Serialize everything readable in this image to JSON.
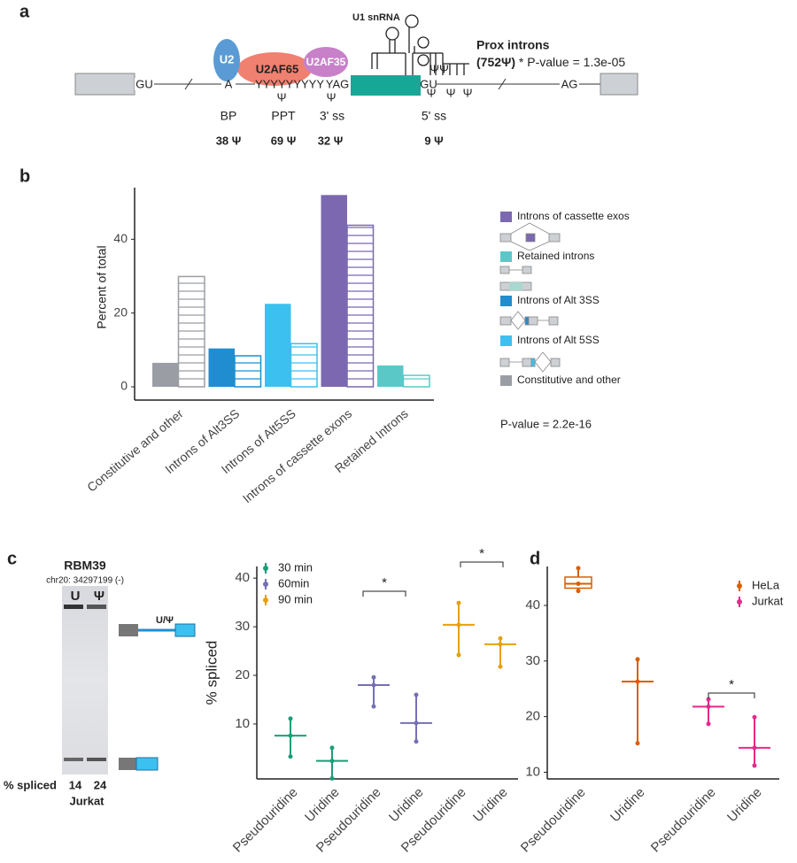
{
  "panel_labels": [
    "a",
    "b",
    "c",
    "d"
  ],
  "diagram": {
    "labels": {
      "u2": "U2",
      "u2af65": "U2AF65",
      "u2af35": "U2AF35",
      "u1": "U1 snRNA",
      "prox_title": "Prox introns",
      "prox_count": "(752Ψ)",
      "prox_p": " * P-value = 1.3e-05"
    },
    "sequence": {
      "gu_left": "GU",
      "branch": "A",
      "ppt": "YYYYYYYYY",
      "yag": "YAG",
      "gu_right": "GU",
      "ag": "AG"
    },
    "psi_marks": [
      "Ψ",
      "Ψ",
      "ΨΨ",
      "Ψ",
      "Ψ",
      "Ψ"
    ],
    "sites": [
      {
        "label": "BP",
        "count": "38 Ψ"
      },
      {
        "label": "PPT",
        "count": "69 Ψ"
      },
      {
        "label": "3' ss",
        "count": "32 Ψ"
      },
      {
        "label": "5' ss",
        "count": "9 Ψ"
      }
    ]
  },
  "gel": {
    "gene": "RBM39",
    "locus": "chr20: 34297199 (-)",
    "lanes": [
      "U",
      "Ψ"
    ],
    "isoform_label": "U/Ψ",
    "row_label": "% spliced",
    "spliced": [
      "14",
      "24"
    ],
    "cell_line": "Jurkat"
  },
  "chart_data": [
    {
      "type": "bar",
      "ylabel": "Percent of total",
      "categories": [
        "Constitutive and other",
        "Introns of Alt3SS",
        "Introns of Alt5SS",
        "Introns of cassette exons",
        "Retained Introns"
      ],
      "colors": [
        "#9a9ea4",
        "#1f8dd0",
        "#3cc0ef",
        "#7b68b0",
        "#5bc8c8"
      ],
      "series": [
        {
          "values": [
            6.5,
            10.4,
            22.5,
            52,
            5.8
          ]
        },
        {
          "values": [
            29.9,
            8.4,
            11.7,
            43.8,
            3.1
          ],
          "hatched": true
        }
      ],
      "ylim": [
        0,
        54
      ],
      "yticks": [
        0,
        20,
        40
      ],
      "legend": [
        {
          "label": "Introns of cassette exos",
          "color": "#7b68b0"
        },
        {
          "label": "Retained introns",
          "color": "#5bc8c8"
        },
        {
          "label": "Introns of Alt 3SS",
          "color": "#1f8dd0"
        },
        {
          "label": "Introns of Alt 5SS",
          "color": "#3cc0ef"
        },
        {
          "label": "Constitutive and other",
          "color": "#9a9ea4"
        }
      ],
      "annotation": "P-value = 2.2e-16"
    },
    {
      "type": "range",
      "ylabel": "% spliced",
      "categories": [
        "Pseudouridine",
        "Uridine",
        "Pseudouridine",
        "Uridine",
        "Pseudouridine",
        "Uridine"
      ],
      "series": [
        {
          "name": "30 min",
          "color": "#1b9e77",
          "center": [
            7.6,
            2.4
          ],
          "low": [
            3.3,
            -1.2
          ],
          "high": [
            11.1,
            5.1
          ]
        },
        {
          "name": "60min",
          "color": "#7570b3",
          "center": [
            18,
            10.2
          ],
          "low": [
            13.6,
            6.4
          ],
          "high": [
            19.6,
            16
          ]
        },
        {
          "name": "90 min",
          "color": "#e6a010",
          "center": [
            30.4,
            26.4
          ],
          "low": [
            24.2,
            21.8
          ],
          "high": [
            34.9,
            27.6
          ]
        }
      ],
      "ylim": [
        -1.3,
        42.4
      ],
      "yticks": [
        10,
        20,
        30,
        40
      ],
      "significance": [
        "*",
        "*"
      ]
    },
    {
      "type": "range",
      "categories": [
        "Pseudouridine",
        "Uridine",
        "Pseudouridine",
        "Uridine"
      ],
      "series": [
        {
          "name": "HeLa",
          "color": "#d95f02",
          "center": [
            43.9,
            26.3
          ],
          "low": [
            42.6,
            15.2
          ],
          "high": [
            46.7,
            30.3
          ],
          "box_low": [
            43.1,
            null
          ],
          "box_high": [
            45.1,
            null
          ]
        },
        {
          "name": "Jurkat",
          "color": "#e7298a",
          "center": [
            21.8,
            14.4
          ],
          "low": [
            18.7,
            11.2
          ],
          "high": [
            23.1,
            19.9
          ]
        }
      ],
      "ylim": [
        8.8,
        47
      ],
      "yticks": [
        10,
        20,
        30,
        40
      ],
      "significance": [
        "*"
      ]
    }
  ]
}
